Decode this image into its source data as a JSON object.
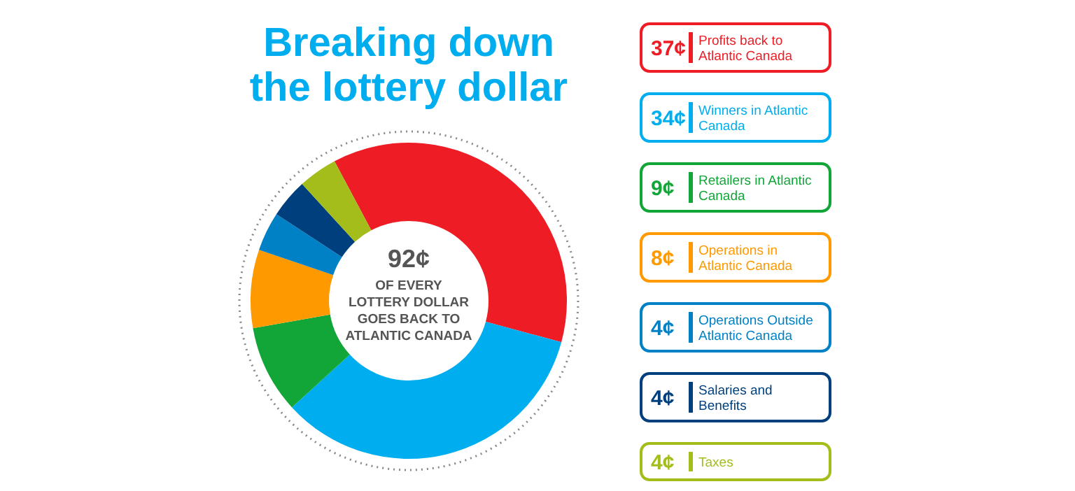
{
  "chart_data": {
    "type": "donut",
    "title": "Breaking down the lottery dollar",
    "categories": [
      "Profits back to Atlantic Canada",
      "Winners in Atlantic Canada",
      "Retailers in Atlantic Canada",
      "Operations in Atlantic Canada",
      "Operations Outside Atlantic Canada",
      "Salaries and Benefits",
      "Taxes"
    ],
    "values": [
      37,
      34,
      9,
      8,
      4,
      4,
      4
    ],
    "value_labels": [
      "37¢",
      "34¢",
      "9¢",
      "8¢",
      "4¢",
      "4¢",
      "4¢"
    ],
    "colors": [
      "#ee1c25",
      "#00aeef",
      "#12a538",
      "#ff9900",
      "#0081c6",
      "#003f7d",
      "#a4bd1a"
    ],
    "annotations": [
      "92¢",
      "OF EVERY LOTTERY DOLLAR GOES BACK TO ATLANTIC CANADA"
    ],
    "legend": "right"
  }
}
